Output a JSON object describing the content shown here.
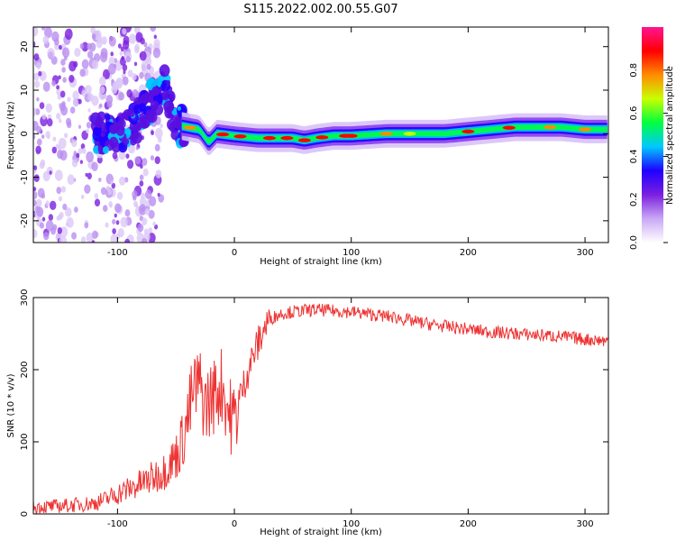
{
  "title": "S115.2022.002.00.55.G07",
  "chart_data": [
    {
      "type": "heatmap",
      "xlabel": "Height of straight line (km)",
      "ylabel": "Frequency (Hz)",
      "xlim": [
        -172,
        320
      ],
      "ylim": [
        -25,
        24.5
      ],
      "xticks": [
        -100,
        0,
        100,
        200,
        300
      ],
      "yticks": [
        -20,
        -10,
        0,
        10,
        20
      ],
      "colorbar": {
        "label": "Normalized spectral amplitude",
        "range": [
          0,
          1
        ],
        "ticks": [
          0.0,
          0.2,
          0.4,
          0.6,
          0.8
        ],
        "colors": [
          "#ffffff",
          "#c9a8f5",
          "#7b1fe0",
          "#1f00ff",
          "#00c8ff",
          "#00ff40",
          "#c8ff00",
          "#ff8c00",
          "#ff0000",
          "#ff1493"
        ]
      },
      "ridge": {
        "x": [
          -100,
          -90,
          -80,
          -70,
          -60,
          -50,
          -40,
          -30,
          -22,
          -15,
          0,
          20,
          50,
          60,
          70,
          85,
          100,
          130,
          160,
          180,
          200,
          220,
          240,
          260,
          280,
          300,
          320
        ],
        "y": [
          0,
          1,
          4,
          8,
          11,
          2,
          1.5,
          1,
          -2,
          0,
          -0.5,
          -1,
          -1,
          -1.5,
          -1,
          -0.5,
          -0.5,
          0,
          0,
          0,
          0.5,
          1,
          1.5,
          1.5,
          1.5,
          1,
          1
        ]
      }
    },
    {
      "type": "line",
      "xlabel": "Height of straight line (km)",
      "ylabel": "SNR (10 * v/v)",
      "xlim": [
        -172,
        320
      ],
      "ylim": [
        0,
        300
      ],
      "xticks": [
        -100,
        0,
        100,
        200,
        300
      ],
      "yticks": [
        0,
        100,
        200,
        300
      ],
      "color": "#ee3333",
      "x": [
        -172,
        -160,
        -140,
        -120,
        -110,
        -100,
        -90,
        -80,
        -70,
        -60,
        -50,
        -45,
        -40,
        -35,
        -30,
        -25,
        -20,
        -15,
        -10,
        -5,
        0,
        5,
        10,
        15,
        20,
        25,
        30,
        40,
        50,
        60,
        70,
        80,
        90,
        100,
        110,
        120,
        130,
        140,
        150,
        160,
        180,
        200,
        220,
        240,
        260,
        280,
        300,
        320
      ],
      "y": [
        10,
        10,
        12,
        15,
        20,
        28,
        35,
        42,
        50,
        60,
        80,
        100,
        130,
        170,
        180,
        150,
        160,
        170,
        180,
        140,
        130,
        160,
        190,
        215,
        235,
        255,
        270,
        278,
        280,
        282,
        283,
        282,
        281,
        280,
        278,
        276,
        274,
        272,
        268,
        265,
        260,
        256,
        252,
        250,
        248,
        246,
        242,
        240
      ]
    }
  ]
}
